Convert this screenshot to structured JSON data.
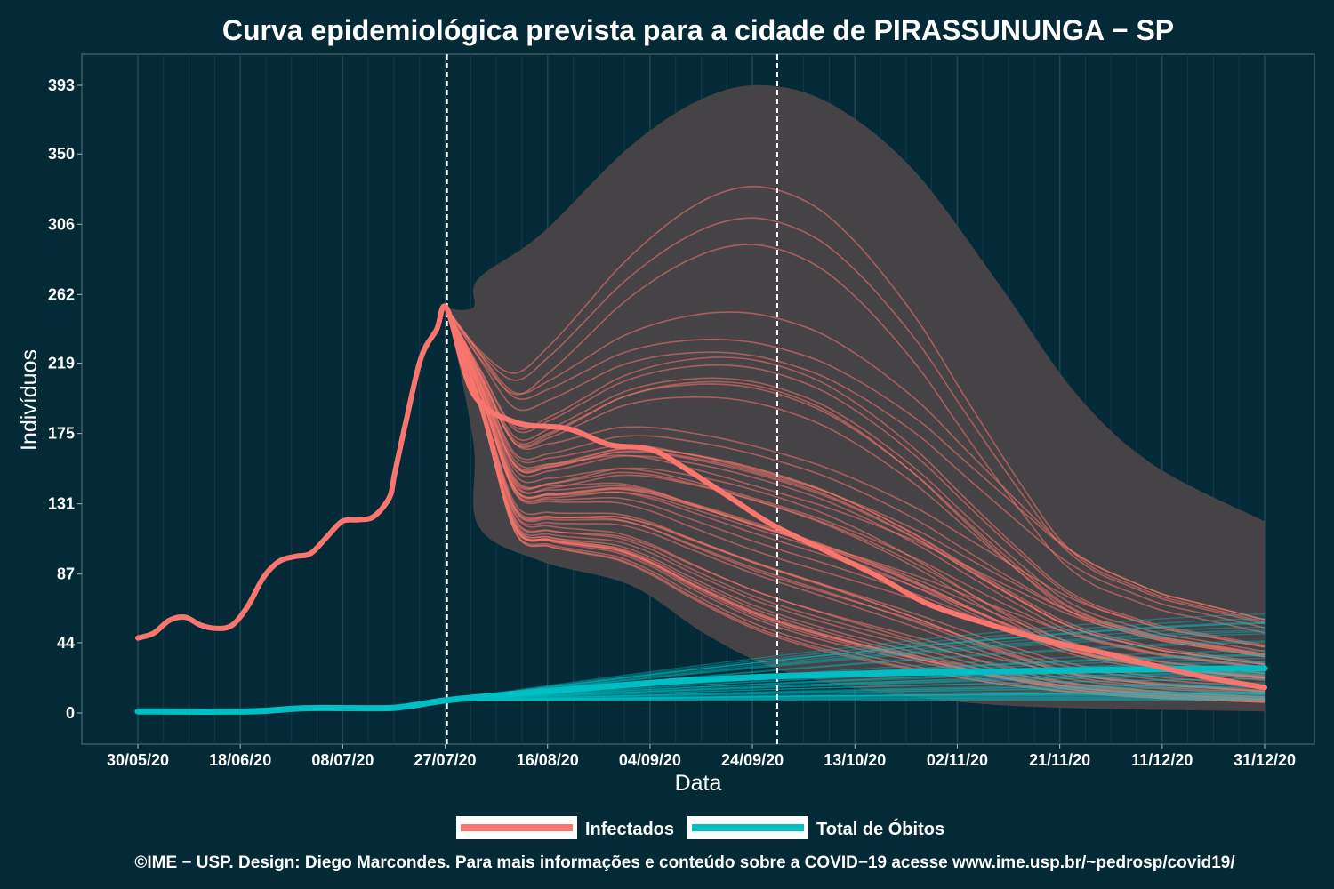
{
  "chart_data": {
    "type": "line",
    "title": "Curva epidemiológica prevista para a cidade de PIRASSUNUNGA − SP",
    "xlabel": "Data",
    "ylabel": "Indivíduos",
    "x_ticks": [
      "30/05/20",
      "18/06/20",
      "08/07/20",
      "27/07/20",
      "16/08/20",
      "04/09/20",
      "24/09/20",
      "13/10/20",
      "02/11/20",
      "21/11/20",
      "11/12/20",
      "31/12/20"
    ],
    "y_ticks": [
      "0",
      "44",
      "87",
      "131",
      "175",
      "219",
      "262",
      "306",
      "350",
      "393"
    ],
    "xlim": [
      "2020-05-30",
      "2020-12-31"
    ],
    "ylim": [
      0,
      393
    ],
    "grid": true,
    "reference_dates": [
      "2020-07-28",
      "2020-09-29"
    ],
    "colors": {
      "infectados": "#f8766d",
      "obitos": "#00bfc4",
      "band": "#4a4448",
      "background": "#042a37"
    },
    "series": [
      {
        "name": "Infectados",
        "x": [
          "2020-05-30",
          "2020-06-02",
          "2020-06-05",
          "2020-06-08",
          "2020-06-11",
          "2020-06-14",
          "2020-06-17",
          "2020-06-20",
          "2020-06-23",
          "2020-06-26",
          "2020-06-29",
          "2020-07-02",
          "2020-07-05",
          "2020-07-08",
          "2020-07-11",
          "2020-07-14",
          "2020-07-17",
          "2020-07-18",
          "2020-07-20",
          "2020-07-23",
          "2020-07-26",
          "2020-07-28",
          "2020-08-02",
          "2020-08-10",
          "2020-08-20",
          "2020-08-28",
          "2020-09-05",
          "2020-09-12",
          "2020-09-20",
          "2020-09-28",
          "2020-10-08",
          "2020-10-18",
          "2020-10-28",
          "2020-11-10",
          "2020-11-20",
          "2020-12-01",
          "2020-12-12",
          "2020-12-22",
          "2020-12-31"
        ],
        "values": [
          47,
          50,
          58,
          60,
          55,
          53,
          55,
          67,
          85,
          95,
          98,
          100,
          110,
          120,
          121,
          123,
          135,
          150,
          180,
          222,
          240,
          253,
          200,
          182,
          178,
          168,
          165,
          152,
          135,
          118,
          102,
          86,
          68,
          54,
          45,
          37,
          28,
          21,
          16
        ]
      },
      {
        "name": "Total de Óbitos",
        "x": [
          "2020-05-30",
          "2020-06-20",
          "2020-07-01",
          "2020-07-15",
          "2020-07-20",
          "2020-07-28",
          "2020-08-10",
          "2020-08-25",
          "2020-09-10",
          "2020-09-29",
          "2020-10-20",
          "2020-11-10",
          "2020-12-01",
          "2020-12-31"
        ],
        "values": [
          1,
          1,
          3,
          3,
          4,
          8,
          12,
          16,
          20,
          23,
          25,
          26,
          27,
          28
        ]
      }
    ],
    "projection_band": {
      "x": [
        "2020-07-28",
        "2020-08-02",
        "2020-08-03",
        "2020-08-15",
        "2020-09-01",
        "2020-09-15",
        "2020-09-27",
        "2020-10-10",
        "2020-10-25",
        "2020-11-10",
        "2020-11-25",
        "2020-12-10",
        "2020-12-31"
      ],
      "upper": [
        253,
        254,
        272,
        300,
        355,
        385,
        393,
        380,
        340,
        270,
        200,
        155,
        120
      ],
      "lower": [
        253,
        170,
        117,
        95,
        80,
        50,
        30,
        18,
        10,
        5,
        3,
        2,
        1
      ]
    }
  },
  "legend": {
    "items": [
      {
        "label": "Infectados",
        "color": "#f8766d"
      },
      {
        "label": "Total de Óbitos",
        "color": "#00bfc4"
      }
    ]
  },
  "footer": {
    "caption": "©IME − USP. Design: Diego Marcondes. Para mais informações e conteúdo sobre a COVID−19 acesse www.ime.usp.br/~pedrosp/covid19/"
  }
}
